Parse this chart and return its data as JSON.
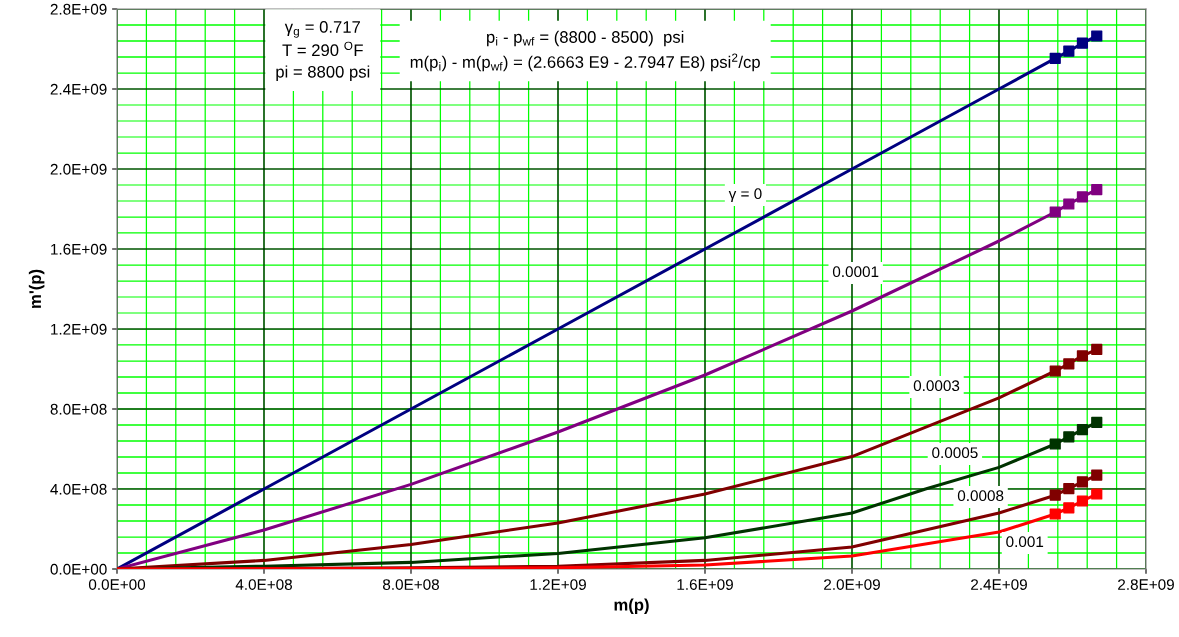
{
  "chart_data": {
    "type": "line",
    "xlabel": "m(p)",
    "ylabel": "m'(p)",
    "xlim": [
      0,
      2800000000
    ],
    "ylim": [
      0,
      2800000000
    ],
    "xticks": [
      {
        "value": 0,
        "label": "0.0E+00"
      },
      {
        "value": 400000000,
        "label": "4.0E+08"
      },
      {
        "value": 800000000,
        "label": "8.0E+08"
      },
      {
        "value": 1200000000,
        "label": "1.2E+09"
      },
      {
        "value": 1600000000,
        "label": "1.6E+09"
      },
      {
        "value": 2000000000,
        "label": "2.0E+09"
      },
      {
        "value": 2400000000,
        "label": "2.4E+09"
      },
      {
        "value": 2800000000,
        "label": "2.8E+09"
      }
    ],
    "yticks": [
      {
        "value": 0,
        "label": "0.0E+00"
      },
      {
        "value": 400000000,
        "label": "4.0E+08"
      },
      {
        "value": 800000000,
        "label": "8.0E+08"
      },
      {
        "value": 1200000000,
        "label": "1.2E+09"
      },
      {
        "value": 1600000000,
        "label": "1.6E+09"
      },
      {
        "value": 2000000000,
        "label": "2.0E+09"
      },
      {
        "value": 2400000000,
        "label": "2.4E+09"
      },
      {
        "value": 2800000000,
        "label": "2.8E+09"
      }
    ],
    "grid": true,
    "legend": false,
    "line_style": "solid",
    "series": [
      {
        "name": "γ = 0",
        "color": "#000080",
        "marker": "none",
        "x": [
          0,
          400000000,
          800000000,
          1200000000,
          1600000000,
          2000000000,
          2400000000,
          2553000000,
          2590000000,
          2627000000,
          2666000000
        ],
        "values": [
          0,
          400000000,
          800000000,
          1200000000,
          1600000000,
          2000000000,
          2400000000,
          2553000000,
          2589000000,
          2629000000,
          2665000000
        ]
      },
      {
        "name": "0.0001",
        "color": "#800080",
        "marker": "none",
        "x": [
          0,
          400000000,
          800000000,
          1200000000,
          1600000000,
          2000000000,
          2400000000,
          2553000000,
          2590000000,
          2627000000,
          2666000000
        ],
        "values": [
          0,
          195000000,
          423000000,
          685000000,
          970000000,
          1290000000,
          1640000000,
          1785000000,
          1825000000,
          1861000000,
          1897000000
        ]
      },
      {
        "name": "0.0003",
        "color": "#800000",
        "marker": "none",
        "x": [
          0,
          400000000,
          800000000,
          1200000000,
          1600000000,
          2000000000,
          2400000000,
          2553000000,
          2590000000,
          2627000000,
          2666000000
        ],
        "values": [
          0,
          43000000,
          123000000,
          230000000,
          375000000,
          562000000,
          856000000,
          990000000,
          1026000000,
          1066000000,
          1098000000
        ]
      },
      {
        "name": "0.0005",
        "color": "#003300",
        "marker": "none",
        "x": [
          0,
          400000000,
          800000000,
          1200000000,
          1600000000,
          2000000000,
          2200000000,
          2400000000,
          2553000000,
          2590000000,
          2627000000,
          2666000000
        ],
        "values": [
          0,
          14000000,
          33000000,
          78000000,
          156000000,
          280000000,
          400000000,
          508000000,
          625000000,
          661000000,
          697000000,
          733000000
        ]
      },
      {
        "name": "0.0008",
        "color": "#800000",
        "marker": "none",
        "x": [
          0,
          400000000,
          800000000,
          1200000000,
          1600000000,
          2000000000,
          2400000000,
          2553000000,
          2590000000,
          2627000000,
          2666000000
        ],
        "values": [
          0,
          2000000,
          6000000,
          14000000,
          43000000,
          110000000,
          280000000,
          369000000,
          402000000,
          436000000,
          469000000
        ]
      },
      {
        "name": "0.001",
        "color": "#ff0000",
        "marker": "none",
        "x": [
          0,
          400000000,
          800000000,
          1200000000,
          1600000000,
          2000000000,
          2400000000,
          2553000000,
          2590000000,
          2627000000,
          2666000000
        ],
        "values": [
          0,
          1000000,
          2000000,
          6000000,
          20000000,
          65000000,
          185000000,
          275000000,
          306000000,
          340000000,
          375000000
        ]
      },
      {
        "type": "scatter",
        "color": "#000080",
        "marker": "square",
        "x": [
          2553000000,
          2590000000,
          2627000000,
          2666000000
        ],
        "values": [
          2553000000,
          2589000000,
          2629000000,
          2665000000
        ]
      },
      {
        "type": "scatter",
        "color": "#800080",
        "marker": "square",
        "x": [
          2553000000,
          2590000000,
          2627000000,
          2666000000
        ],
        "values": [
          1785000000,
          1825000000,
          1861000000,
          1897000000
        ]
      },
      {
        "type": "scatter",
        "color": "#800000",
        "marker": "square",
        "x": [
          2553000000,
          2590000000,
          2627000000,
          2666000000
        ],
        "values": [
          990000000,
          1026000000,
          1066000000,
          1098000000
        ]
      },
      {
        "type": "scatter",
        "color": "#003300",
        "marker": "square",
        "x": [
          2553000000,
          2590000000,
          2627000000,
          2666000000
        ],
        "values": [
          625000000,
          661000000,
          697000000,
          733000000
        ]
      },
      {
        "type": "scatter",
        "color": "#800000",
        "marker": "square",
        "x": [
          2553000000,
          2590000000,
          2627000000,
          2666000000
        ],
        "values": [
          369000000,
          402000000,
          436000000,
          469000000
        ]
      },
      {
        "type": "scatter",
        "color": "#ff0000",
        "marker": "square",
        "x": [
          2553000000,
          2590000000,
          2627000000,
          2666000000
        ],
        "values": [
          275000000,
          306000000,
          340000000,
          375000000
        ]
      }
    ],
    "annotations": [
      "γ$_{g}$ = 0.717\nT = 290 $^{O}$F\npi = 8800 psi",
      "p$_{i}$ - p$_{wf}$ = (8800 - 8500)  psi\nm(p$_{i}$) - m(p$_{wf}$) = (2.6663 E9 - 2.7947 E8) psi$^{2}$/cp"
    ]
  }
}
